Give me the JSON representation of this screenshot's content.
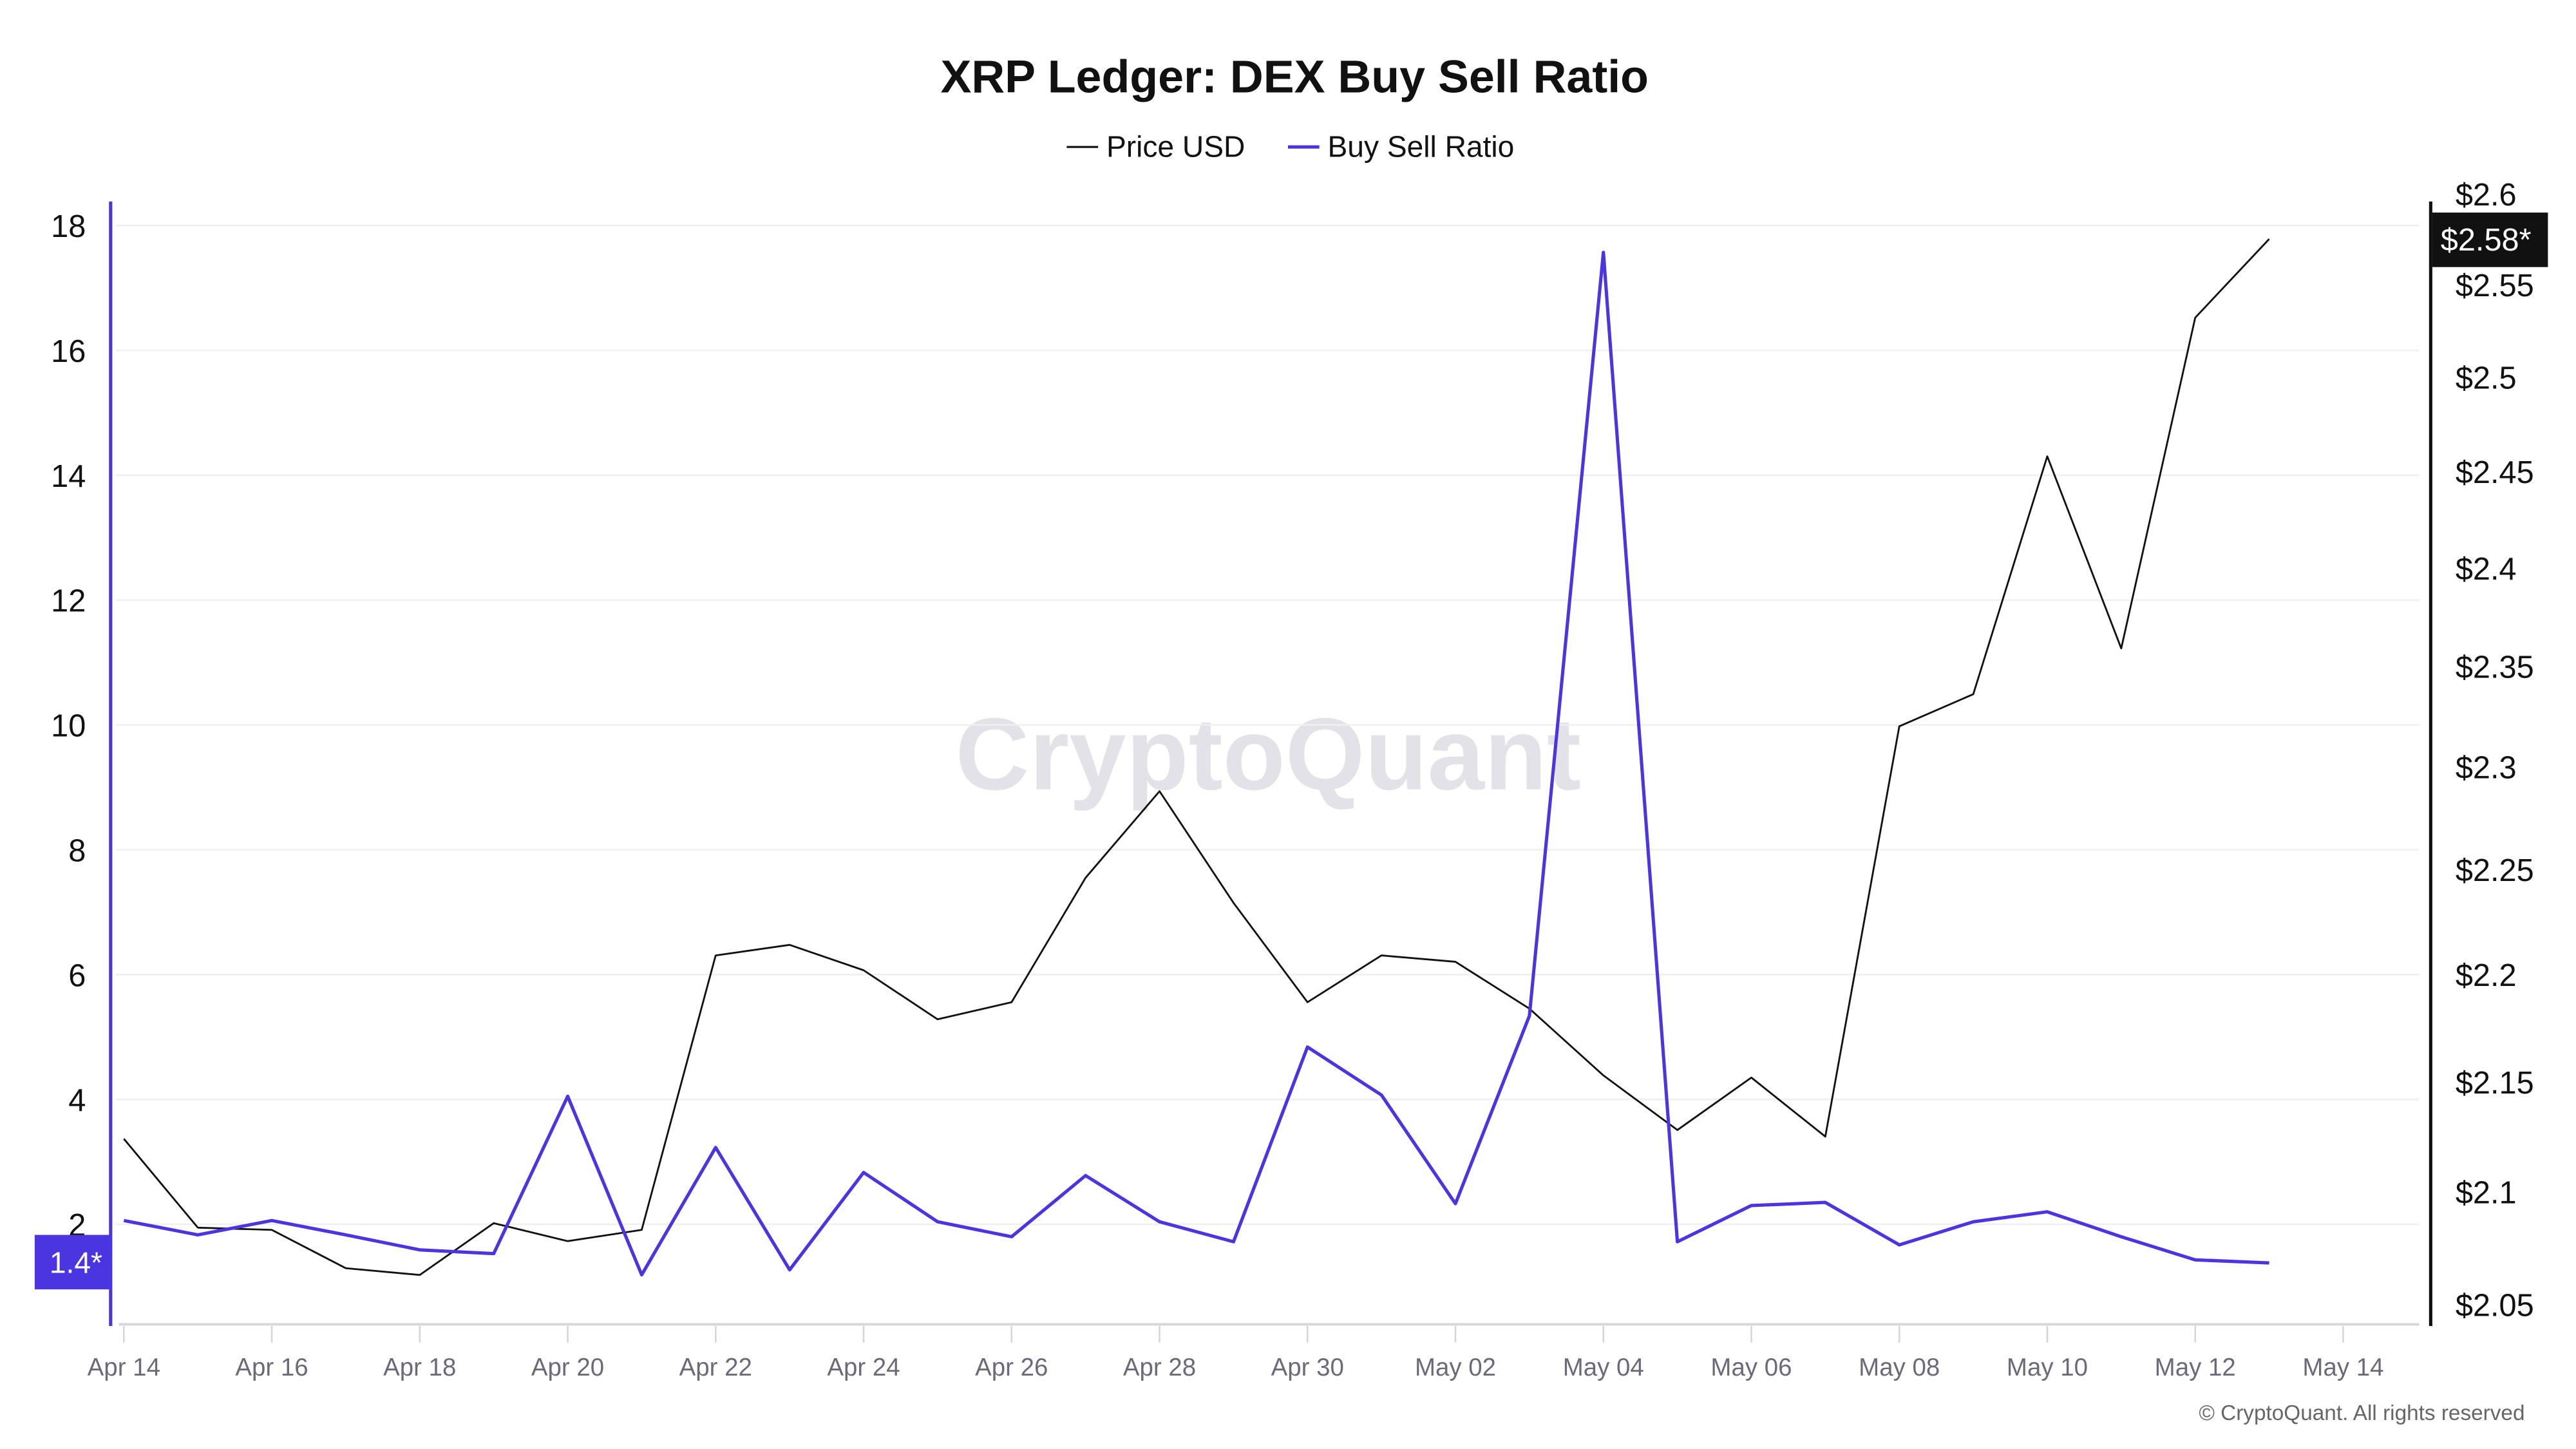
{
  "chart_data": {
    "type": "line",
    "title": "XRP Ledger: DEX Buy Sell Ratio",
    "legend_placement": "top-center",
    "grid": true,
    "x": [
      "Apr 14",
      "Apr 15",
      "Apr 16",
      "Apr 17",
      "Apr 18",
      "Apr 19",
      "Apr 20",
      "Apr 21",
      "Apr 22",
      "Apr 23",
      "Apr 24",
      "Apr 25",
      "Apr 26",
      "Apr 27",
      "Apr 28",
      "Apr 29",
      "Apr 30",
      "May 01",
      "May 02",
      "May 03",
      "May 04",
      "May 05",
      "May 06",
      "May 07",
      "May 08",
      "May 09",
      "May 10",
      "May 11",
      "May 12",
      "May 13"
    ],
    "x_ticks": [
      "Apr 14",
      "Apr 16",
      "Apr 18",
      "Apr 20",
      "Apr 22",
      "Apr 24",
      "Apr 26",
      "Apr 28",
      "Apr 30",
      "May 02",
      "May 04",
      "May 06",
      "May 08",
      "May 10",
      "May 12",
      "May 14"
    ],
    "left_axis": {
      "ticks": [
        "2",
        "4",
        "6",
        "8",
        "10",
        "12",
        "14",
        "16",
        "18"
      ],
      "range": [
        0,
        18
      ],
      "color": "#4b35e0"
    },
    "right_axis": {
      "ticks": [
        "$2.05",
        "$2.1",
        "$2.15",
        "$2.2",
        "$2.25",
        "$2.3",
        "$2.35",
        "$2.4",
        "$2.45",
        "$2.5",
        "$2.55",
        "$2.6"
      ],
      "range": [
        2.05,
        2.6
      ],
      "scale": "log",
      "color": "#111111"
    },
    "series": [
      {
        "name": "Price USD",
        "axis": "right",
        "color": "#111111",
        "values": [
          2.124,
          2.084,
          2.083,
          2.066,
          2.063,
          2.086,
          2.078,
          2.083,
          2.209,
          2.214,
          2.202,
          2.179,
          2.187,
          2.246,
          2.288,
          2.234,
          2.187,
          2.209,
          2.206,
          2.184,
          2.153,
          2.128,
          2.152,
          2.125,
          2.32,
          2.336,
          2.458,
          2.359,
          2.532,
          2.575
        ],
        "last_label": "$2.58*"
      },
      {
        "name": "Buy Sell Ratio",
        "axis": "left",
        "color": "#4b35e0",
        "values": [
          2.06,
          1.83,
          2.06,
          1.83,
          1.59,
          1.53,
          4.05,
          1.19,
          3.23,
          1.27,
          2.83,
          2.04,
          1.8,
          2.78,
          2.04,
          1.72,
          4.84,
          4.07,
          2.33,
          5.34,
          17.57,
          1.72,
          2.3,
          2.35,
          1.67,
          2.04,
          2.2,
          1.8,
          1.43,
          1.38
        ],
        "last_label": "1.4*"
      }
    ]
  },
  "watermark": "CryptoQuant",
  "copyright": "© CryptoQuant. All rights reserved"
}
